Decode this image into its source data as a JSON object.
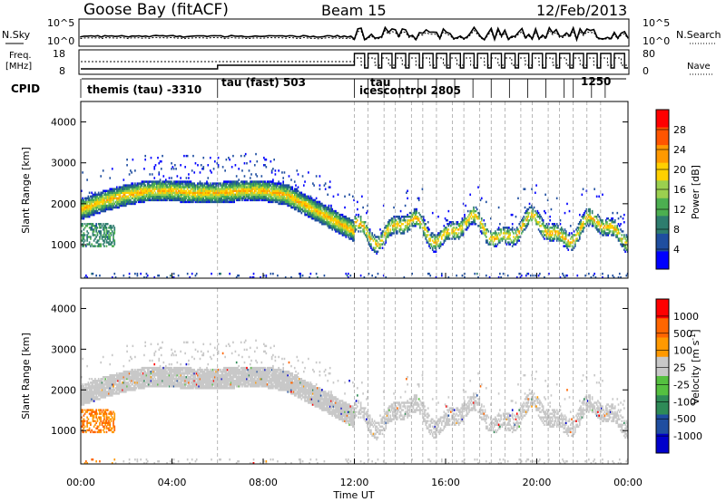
{
  "header": {
    "station": "Goose Bay (fitACF)",
    "beam": "Beam 15",
    "date": "12/Feb/2013"
  },
  "sky_panel": {
    "left_label": "N.Sky",
    "right_label": "N.Search",
    "ytick_top": "10^5",
    "ytick_bottom": "10^0"
  },
  "freq_panel": {
    "left_label_top": "Freq.",
    "left_label_bottom": "[MHz]",
    "right_label": "Nave",
    "left_ticks": [
      "18",
      "8"
    ],
    "right_ticks": [
      "80",
      "0"
    ]
  },
  "cpid": {
    "label": "CPID",
    "entries": [
      {
        "hour": 0.0,
        "text": "themis (tau) -3310"
      },
      {
        "hour": 6.0,
        "text": "tau (fast) 503"
      },
      {
        "hour": 12.0,
        "text": "tau"
      },
      {
        "hour": 12.0,
        "text": "icescontrol 2805"
      },
      {
        "hour": 21.6,
        "text": "1250"
      }
    ]
  },
  "chart_data": [
    {
      "type": "heatmap",
      "name": "power",
      "xlabel": "Time UT",
      "ylabel": "Slant Range [km]",
      "xlim": [
        0,
        24
      ],
      "ylim": [
        180,
        4500
      ],
      "x_ticks": [
        "00:00",
        "04:00",
        "08:00",
        "12:00",
        "16:00",
        "20:00",
        "00:00"
      ],
      "y_ticks": [
        "1000",
        "2000",
        "3000",
        "4000"
      ],
      "colorbar": {
        "label": "Power [dB]",
        "ticks": [
          "28",
          "24",
          "20",
          "16",
          "12",
          "8",
          "4"
        ],
        "range": [
          0,
          30
        ],
        "colors": [
          "#0000ff",
          "#1f4ea0",
          "#2e7d6e",
          "#4caf50",
          "#9bd04f",
          "#ffd000",
          "#ff9900",
          "#ff5500",
          "#ff0000"
        ]
      },
      "band": {
        "description_hours": [
          0,
          1,
          2,
          3,
          4,
          5,
          6,
          7,
          8,
          9,
          10,
          11,
          12
        ],
        "center_km": [
          1850,
          2050,
          2200,
          2300,
          2300,
          2250,
          2250,
          2300,
          2300,
          2200,
          1900,
          1600,
          1300
        ]
      }
    },
    {
      "type": "heatmap",
      "name": "velocity",
      "xlabel": "Time UT",
      "ylabel": "Slant Range [km]",
      "xlim": [
        0,
        24
      ],
      "ylim": [
        180,
        4500
      ],
      "x_ticks": [
        "00:00",
        "04:00",
        "08:00",
        "12:00",
        "16:00",
        "20:00",
        "00:00"
      ],
      "y_ticks": [
        "1000",
        "2000",
        "3000",
        "4000"
      ],
      "colorbar": {
        "label": "Velocity [m s-1]",
        "ticks": [
          "1000",
          "500",
          "100",
          "25",
          "-25",
          "-100",
          "-500",
          "-1000"
        ],
        "colors": [
          "#0000cc",
          "#1f4ea0",
          "#2e8b57",
          "#55c040",
          "#c8c8c8",
          "#ff9900",
          "#ff6600",
          "#ff0000"
        ]
      }
    }
  ]
}
